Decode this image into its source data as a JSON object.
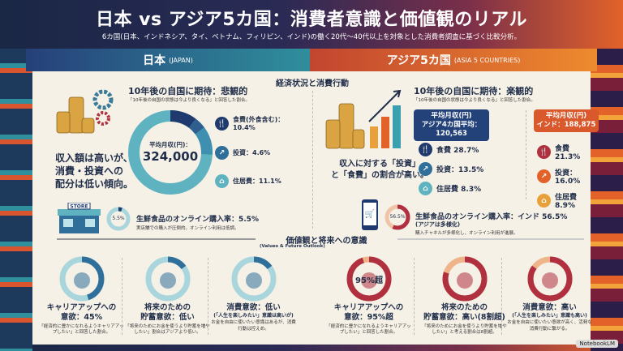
{
  "header": {
    "title": "日本 vs アジア5カ国：消費者意識と価値観のリアル",
    "subtitle": "6カ国(日本、インドネシア、タイ、ベトナム、フィリピン、インド)の働く20代〜40代以上を対象とした消費者調査に基づく比較分析。"
  },
  "columns": {
    "japan": {
      "label": "日本",
      "sub": "(JAPAN)"
    },
    "asia": {
      "label": "アジア5カ国",
      "sub": "(ASIA 5 COUNTRIES)"
    }
  },
  "economy": {
    "section_title": "経済状況と消費行動",
    "japan": {
      "summary": [
        "収入額は高いが、",
        "消費・投資への",
        "配分は低い傾向。"
      ],
      "heading": "10年後の自国に期待：悲観的",
      "note": "「10年後の自国の状態は今より良くなる」と回答した割合。",
      "income_label": "平均月収(円)：",
      "income_value": "324,000",
      "items": [
        {
          "icon": "fork-spoon-icon",
          "label": "食費(外食含む)：",
          "value": "10.4%"
        },
        {
          "icon": "chart-icon",
          "label": "投資：4.6%"
        },
        {
          "icon": "house-icon",
          "label": "住居費：11.1%"
        }
      ],
      "online": {
        "donut_label": "5.5%",
        "fill_percent": 5.5,
        "store_sign": "STORE",
        "title": "生鮮食品のオンライン購入率：5.5%",
        "note": "実店舗での購入が圧倒的。オンライン利用は低調。"
      }
    },
    "asia": {
      "summary": [
        "収入に対する「投資」",
        "と「食費」の割合が高い。"
      ],
      "heading": "10年後の自国に期待：楽観的",
      "note": "「10年後の自国の状態は今より良くなる」と回答した割合。",
      "box1": {
        "line1": "平均月収(円)",
        "line2": "アジア4カ国平均：120,563",
        "items": [
          "食費 28.7%",
          "投資：13.5%",
          "住居費 8.3%"
        ]
      },
      "box2": {
        "line1": "平均月収(円)",
        "line2": "インド：188,875",
        "items": [
          "食費 21.3%",
          "投資：16.0%",
          "住居費 8.9%"
        ]
      },
      "online": {
        "donut_label": "56.5%",
        "fill_percent": 56.5,
        "title": "生鮮食品のオンライン購入率：インド 56.5%",
        "sub": "(アジアは多様化)",
        "note": "購入チャネルが多様化し、オンライン利用が進展。"
      }
    }
  },
  "values": {
    "section_title": "価値観と将来への意識",
    "section_sub": "(Values & Future Outlook)",
    "japan": [
      {
        "t1": "キャリアアップへの",
        "t2": "意欲：45%",
        "d": "「経済的に豊かになれるようキャリアアップしたい」と回答した割合。",
        "fill_percent": 45
      },
      {
        "t1": "将来のための",
        "t2": "貯蓄意欲：低い",
        "d": "「将来のためにお金を使うより貯蓄を増やしたい」割合はアジアより低い。",
        "fill_percent": 15
      },
      {
        "t1": "消費意欲：低い",
        "t2": "(「人生を楽しみたい」意識は高いが)",
        "d": "お金を自由に使いたい意識はあるが、消費行動は控えめ。",
        "fill_percent": 15
      }
    ],
    "asia": [
      {
        "t1": "キャリアアップへの",
        "t2": "意欲：95%超",
        "donut_label": "95%超",
        "d": "「経済的に豊かになれるようキャリアアップしたい」と回答した割合。",
        "fill_percent": 95
      },
      {
        "t1": "将来のための",
        "t2": "貯蓄意欲：高い(8割超)",
        "d": "「将来のためにお金を使うより貯蓄を増やしたい」と考える割合は8割超。",
        "fill_percent": 80
      },
      {
        "t1": "消費意欲：高い",
        "t2": "(「人生を楽しみたい」意識も高い)",
        "d": "お金を自由に使いたい意欲が高く、活発な消費行動に繋がる。",
        "fill_percent": 85
      }
    ]
  },
  "watermark": "NotebookLM",
  "colors": {
    "navy": "#1f3a6e",
    "teal": "#5fb3c0",
    "red": "#b0303f",
    "orange": "#e2622a",
    "amber": "#e8a13a"
  }
}
